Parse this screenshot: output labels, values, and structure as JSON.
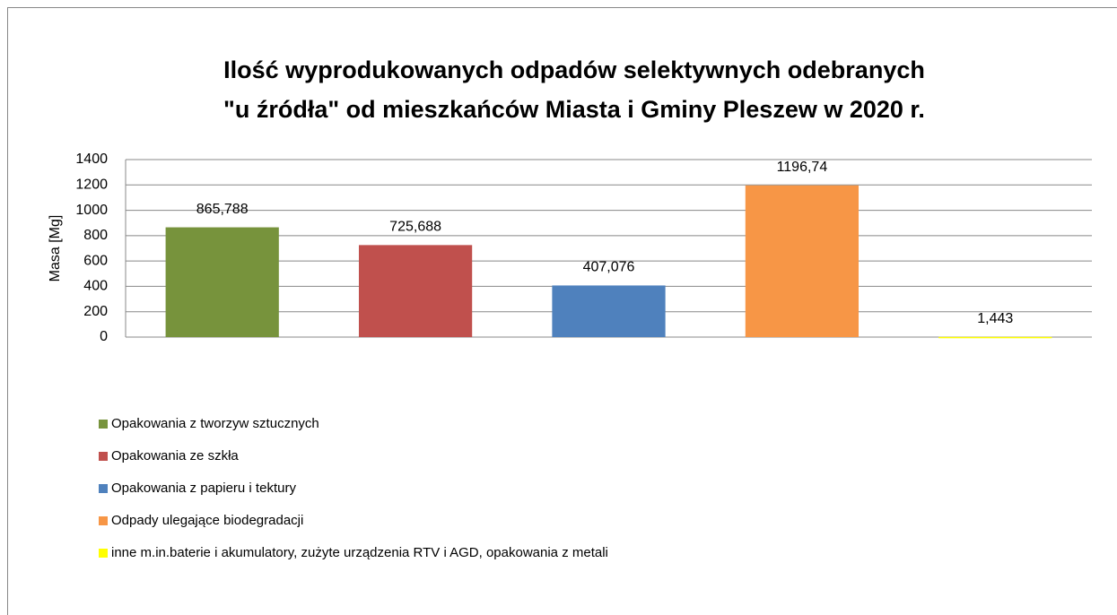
{
  "chart_data": {
    "type": "bar",
    "title": [
      "Ilość wyprodukowanych odpadów  selektywnych odebranych",
      "\"u źródła\" od mieszkańców  Miasta  i Gminy Pleszew w 2020 r."
    ],
    "y_label": "Masa [Mg]",
    "categories": [
      null
    ],
    "series": [
      {
        "name": "Opakowania z tworzyw sztucznych",
        "color": "#77933c",
        "values": [
          865.788
        ],
        "value_labels": [
          "865,788"
        ]
      },
      {
        "name": "Opakowania ze szkła",
        "color": "#c0504d",
        "values": [
          725.688
        ],
        "value_labels": [
          "725,688"
        ]
      },
      {
        "name": "Opakowania z papieru i  tektury",
        "color": "#4f81bd",
        "values": [
          407.076
        ],
        "value_labels": [
          "407,076"
        ]
      },
      {
        "name": "Odpady ulegające biodegradacji",
        "color": "#f79646",
        "values": [
          1196.74
        ],
        "value_labels": [
          "1196,74"
        ]
      },
      {
        "name": "inne m.in.baterie i akumulatory, zużyte urządzenia RTV i AGD, opakowania z metali",
        "color": "#ffff00",
        "values": [
          1.443
        ],
        "value_labels": [
          "1,443"
        ]
      }
    ],
    "ylim": [
      0,
      1400
    ],
    "yticks": [
      0,
      200,
      400,
      600,
      800,
      1000,
      1200,
      1400
    ],
    "grid": true,
    "legend": "bottom"
  }
}
